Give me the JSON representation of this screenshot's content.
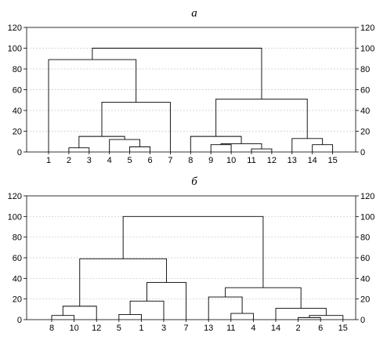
{
  "chart_data": [
    {
      "type": "dendrogram",
      "title": "а",
      "ylim": [
        0,
        120
      ],
      "yticks": [
        0,
        20,
        40,
        60,
        80,
        100,
        120
      ],
      "grid": true,
      "leaves": [
        "1",
        "2",
        "3",
        "4",
        "5",
        "6",
        "7",
        "8",
        "9",
        "10",
        "11",
        "12",
        "13",
        "14",
        "15"
      ],
      "merges": [
        {
          "a": "2",
          "b": "3",
          "height": 4
        },
        {
          "a": "5",
          "b": "6",
          "height": 5
        },
        {
          "a": "4",
          "b": "5-6",
          "height": 12
        },
        {
          "a": "2-3",
          "b": "4-6",
          "height": 15
        },
        {
          "a": "2-6",
          "b": "7",
          "height": 48
        },
        {
          "a": "1",
          "b": "2-7",
          "height": 89
        },
        {
          "a": "11",
          "b": "12",
          "height": 3
        },
        {
          "a": "9",
          "b": "10",
          "height": 7
        },
        {
          "a": "9-10",
          "b": "11-12",
          "height": 8
        },
        {
          "a": "8",
          "b": "9-12",
          "height": 15
        },
        {
          "a": "14",
          "b": "15",
          "height": 7
        },
        {
          "a": "13",
          "b": "14-15",
          "height": 13
        },
        {
          "a": "8-12",
          "b": "13-15",
          "height": 51
        },
        {
          "a": "1-7",
          "b": "8-15",
          "height": 100
        }
      ]
    },
    {
      "type": "dendrogram",
      "title": "б",
      "ylim": [
        0,
        120
      ],
      "yticks": [
        0,
        20,
        40,
        60,
        80,
        100,
        120
      ],
      "grid": true,
      "leaves": [
        "8",
        "10",
        "12",
        "5",
        "1",
        "3",
        "7",
        "13",
        "11",
        "4",
        "14",
        "2",
        "6",
        "15"
      ],
      "merges": [
        {
          "a": "8",
          "b": "10",
          "height": 4
        },
        {
          "a": "8-10",
          "b": "12",
          "height": 13
        },
        {
          "a": "5",
          "b": "1",
          "height": 5
        },
        {
          "a": "5-1",
          "b": "3",
          "height": 18
        },
        {
          "a": "5-3",
          "b": "7",
          "height": 36
        },
        {
          "a": "8-12",
          "b": "5-7",
          "height": 59
        },
        {
          "a": "11",
          "b": "4",
          "height": 6
        },
        {
          "a": "13",
          "b": "11-4",
          "height": 22
        },
        {
          "a": "2",
          "b": "6",
          "height": 2
        },
        {
          "a": "2-6",
          "b": "15",
          "height": 4
        },
        {
          "a": "14",
          "b": "2-15",
          "height": 11
        },
        {
          "a": "13-4",
          "b": "14-15",
          "height": 31
        },
        {
          "a": "8-7",
          "b": "13-15",
          "height": 100
        }
      ]
    }
  ]
}
